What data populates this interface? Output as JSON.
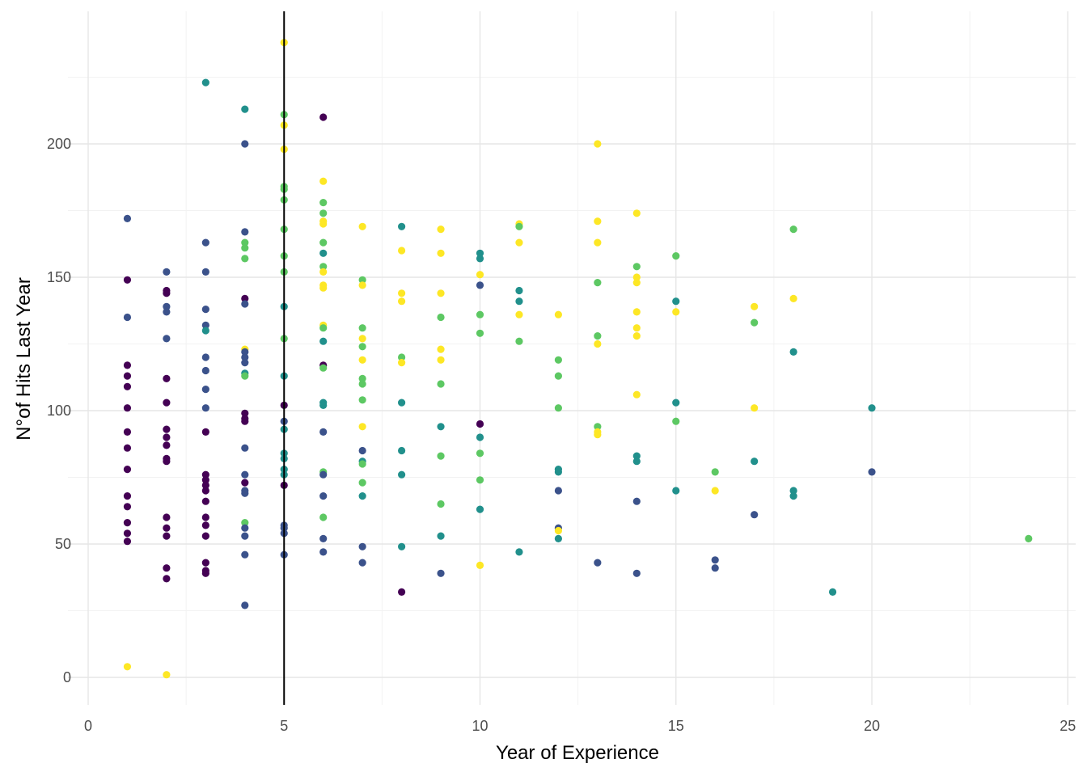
{
  "chart_data": {
    "type": "scatter",
    "title": "",
    "xlabel": "Year of Experience",
    "ylabel": "N°of Hits Last Year",
    "xlim": [
      -0.3,
      25.2
    ],
    "ylim": [
      -10,
      250
    ],
    "x_ticks": [
      0,
      5,
      10,
      15,
      20,
      25
    ],
    "y_ticks": [
      0,
      50,
      100,
      150,
      200
    ],
    "grid": true,
    "legend": "none",
    "reference_line": {
      "orientation": "vertical",
      "x": 5,
      "color": "#000000"
    },
    "color_scale": [
      "#440154",
      "#3b528b",
      "#21908c",
      "#5dc863",
      "#fde725"
    ],
    "points": [
      {
        "x": 1,
        "y": 172,
        "c": 1
      },
      {
        "x": 1,
        "y": 149,
        "c": 0
      },
      {
        "x": 1,
        "y": 135,
        "c": 1
      },
      {
        "x": 1,
        "y": 117,
        "c": 0
      },
      {
        "x": 1,
        "y": 113,
        "c": 0
      },
      {
        "x": 1,
        "y": 109,
        "c": 0
      },
      {
        "x": 1,
        "y": 101,
        "c": 0
      },
      {
        "x": 1,
        "y": 92,
        "c": 0
      },
      {
        "x": 1,
        "y": 86,
        "c": 0
      },
      {
        "x": 1,
        "y": 78,
        "c": 0
      },
      {
        "x": 1,
        "y": 68,
        "c": 0
      },
      {
        "x": 1,
        "y": 64,
        "c": 0
      },
      {
        "x": 1,
        "y": 58,
        "c": 0
      },
      {
        "x": 1,
        "y": 54,
        "c": 0
      },
      {
        "x": 1,
        "y": 51,
        "c": 0
      },
      {
        "x": 1,
        "y": 4,
        "c": 4
      },
      {
        "x": 2,
        "y": 152,
        "c": 1
      },
      {
        "x": 2,
        "y": 145,
        "c": 0
      },
      {
        "x": 2,
        "y": 144,
        "c": 0
      },
      {
        "x": 2,
        "y": 139,
        "c": 1
      },
      {
        "x": 2,
        "y": 137,
        "c": 1
      },
      {
        "x": 2,
        "y": 127,
        "c": 1
      },
      {
        "x": 2,
        "y": 112,
        "c": 0
      },
      {
        "x": 2,
        "y": 103,
        "c": 0
      },
      {
        "x": 2,
        "y": 93,
        "c": 0
      },
      {
        "x": 2,
        "y": 90,
        "c": 0
      },
      {
        "x": 2,
        "y": 87,
        "c": 0
      },
      {
        "x": 2,
        "y": 82,
        "c": 0
      },
      {
        "x": 2,
        "y": 81,
        "c": 0
      },
      {
        "x": 2,
        "y": 60,
        "c": 0
      },
      {
        "x": 2,
        "y": 56,
        "c": 0
      },
      {
        "x": 2,
        "y": 53,
        "c": 0
      },
      {
        "x": 2,
        "y": 41,
        "c": 0
      },
      {
        "x": 2,
        "y": 37,
        "c": 0
      },
      {
        "x": 2,
        "y": 1,
        "c": 4
      },
      {
        "x": 3,
        "y": 223,
        "c": 2
      },
      {
        "x": 3,
        "y": 163,
        "c": 1
      },
      {
        "x": 3,
        "y": 152,
        "c": 1
      },
      {
        "x": 3,
        "y": 138,
        "c": 1
      },
      {
        "x": 3,
        "y": 132,
        "c": 1
      },
      {
        "x": 3,
        "y": 130,
        "c": 2
      },
      {
        "x": 3,
        "y": 120,
        "c": 1
      },
      {
        "x": 3,
        "y": 115,
        "c": 1
      },
      {
        "x": 3,
        "y": 108,
        "c": 1
      },
      {
        "x": 3,
        "y": 101,
        "c": 1
      },
      {
        "x": 3,
        "y": 92,
        "c": 0
      },
      {
        "x": 3,
        "y": 76,
        "c": 0
      },
      {
        "x": 3,
        "y": 74,
        "c": 0
      },
      {
        "x": 3,
        "y": 72,
        "c": 0
      },
      {
        "x": 3,
        "y": 70,
        "c": 0
      },
      {
        "x": 3,
        "y": 66,
        "c": 0
      },
      {
        "x": 3,
        "y": 60,
        "c": 0
      },
      {
        "x": 3,
        "y": 57,
        "c": 0
      },
      {
        "x": 3,
        "y": 53,
        "c": 0
      },
      {
        "x": 3,
        "y": 43,
        "c": 0
      },
      {
        "x": 3,
        "y": 40,
        "c": 0
      },
      {
        "x": 3,
        "y": 39,
        "c": 0
      },
      {
        "x": 4,
        "y": 213,
        "c": 2
      },
      {
        "x": 4,
        "y": 200,
        "c": 1
      },
      {
        "x": 4,
        "y": 167,
        "c": 1
      },
      {
        "x": 4,
        "y": 163,
        "c": 3
      },
      {
        "x": 4,
        "y": 161,
        "c": 3
      },
      {
        "x": 4,
        "y": 157,
        "c": 3
      },
      {
        "x": 4,
        "y": 142,
        "c": 0
      },
      {
        "x": 4,
        "y": 140,
        "c": 1
      },
      {
        "x": 4,
        "y": 123,
        "c": 4
      },
      {
        "x": 4,
        "y": 122,
        "c": 1
      },
      {
        "x": 4,
        "y": 120,
        "c": 1
      },
      {
        "x": 4,
        "y": 118,
        "c": 1
      },
      {
        "x": 4,
        "y": 114,
        "c": 2
      },
      {
        "x": 4,
        "y": 113,
        "c": 3
      },
      {
        "x": 4,
        "y": 99,
        "c": 0
      },
      {
        "x": 4,
        "y": 97,
        "c": 0
      },
      {
        "x": 4,
        "y": 96,
        "c": 0
      },
      {
        "x": 4,
        "y": 86,
        "c": 1
      },
      {
        "x": 4,
        "y": 76,
        "c": 1
      },
      {
        "x": 4,
        "y": 73,
        "c": 0
      },
      {
        "x": 4,
        "y": 70,
        "c": 1
      },
      {
        "x": 4,
        "y": 69,
        "c": 1
      },
      {
        "x": 4,
        "y": 58,
        "c": 3
      },
      {
        "x": 4,
        "y": 56,
        "c": 1
      },
      {
        "x": 4,
        "y": 53,
        "c": 1
      },
      {
        "x": 4,
        "y": 46,
        "c": 1
      },
      {
        "x": 4,
        "y": 27,
        "c": 1
      },
      {
        "x": 5,
        "y": 238,
        "c": 4
      },
      {
        "x": 5,
        "y": 211,
        "c": 3
      },
      {
        "x": 5,
        "y": 207,
        "c": 4
      },
      {
        "x": 5,
        "y": 198,
        "c": 4
      },
      {
        "x": 5,
        "y": 184,
        "c": 3
      },
      {
        "x": 5,
        "y": 183,
        "c": 3
      },
      {
        "x": 5,
        "y": 179,
        "c": 3
      },
      {
        "x": 5,
        "y": 168,
        "c": 3
      },
      {
        "x": 5,
        "y": 158,
        "c": 3
      },
      {
        "x": 5,
        "y": 152,
        "c": 3
      },
      {
        "x": 5,
        "y": 139,
        "c": 2
      },
      {
        "x": 5,
        "y": 127,
        "c": 3
      },
      {
        "x": 5,
        "y": 113,
        "c": 2
      },
      {
        "x": 5,
        "y": 102,
        "c": 0
      },
      {
        "x": 5,
        "y": 96,
        "c": 1
      },
      {
        "x": 5,
        "y": 93,
        "c": 2
      },
      {
        "x": 5,
        "y": 84,
        "c": 2
      },
      {
        "x": 5,
        "y": 82,
        "c": 2
      },
      {
        "x": 5,
        "y": 78,
        "c": 2
      },
      {
        "x": 5,
        "y": 76,
        "c": 2
      },
      {
        "x": 5,
        "y": 72,
        "c": 0
      },
      {
        "x": 5,
        "y": 57,
        "c": 1
      },
      {
        "x": 5,
        "y": 56,
        "c": 1
      },
      {
        "x": 5,
        "y": 54,
        "c": 1
      },
      {
        "x": 5,
        "y": 46,
        "c": 1
      },
      {
        "x": 6,
        "y": 210,
        "c": 0
      },
      {
        "x": 6,
        "y": 186,
        "c": 4
      },
      {
        "x": 6,
        "y": 178,
        "c": 3
      },
      {
        "x": 6,
        "y": 174,
        "c": 3
      },
      {
        "x": 6,
        "y": 171,
        "c": 4
      },
      {
        "x": 6,
        "y": 170,
        "c": 4
      },
      {
        "x": 6,
        "y": 163,
        "c": 3
      },
      {
        "x": 6,
        "y": 159,
        "c": 2
      },
      {
        "x": 6,
        "y": 154,
        "c": 3
      },
      {
        "x": 6,
        "y": 152,
        "c": 4
      },
      {
        "x": 6,
        "y": 147,
        "c": 4
      },
      {
        "x": 6,
        "y": 146,
        "c": 4
      },
      {
        "x": 6,
        "y": 132,
        "c": 4
      },
      {
        "x": 6,
        "y": 131,
        "c": 3
      },
      {
        "x": 6,
        "y": 126,
        "c": 2
      },
      {
        "x": 6,
        "y": 117,
        "c": 0
      },
      {
        "x": 6,
        "y": 116,
        "c": 3
      },
      {
        "x": 6,
        "y": 103,
        "c": 2
      },
      {
        "x": 6,
        "y": 102,
        "c": 2
      },
      {
        "x": 6,
        "y": 92,
        "c": 1
      },
      {
        "x": 6,
        "y": 77,
        "c": 3
      },
      {
        "x": 6,
        "y": 76,
        "c": 1
      },
      {
        "x": 6,
        "y": 68,
        "c": 1
      },
      {
        "x": 6,
        "y": 60,
        "c": 3
      },
      {
        "x": 6,
        "y": 52,
        "c": 1
      },
      {
        "x": 6,
        "y": 47,
        "c": 1
      },
      {
        "x": 7,
        "y": 169,
        "c": 4
      },
      {
        "x": 7,
        "y": 149,
        "c": 3
      },
      {
        "x": 7,
        "y": 147,
        "c": 4
      },
      {
        "x": 7,
        "y": 131,
        "c": 3
      },
      {
        "x": 7,
        "y": 127,
        "c": 4
      },
      {
        "x": 7,
        "y": 124,
        "c": 3
      },
      {
        "x": 7,
        "y": 119,
        "c": 4
      },
      {
        "x": 7,
        "y": 112,
        "c": 3
      },
      {
        "x": 7,
        "y": 110,
        "c": 3
      },
      {
        "x": 7,
        "y": 104,
        "c": 3
      },
      {
        "x": 7,
        "y": 94,
        "c": 4
      },
      {
        "x": 7,
        "y": 85,
        "c": 1
      },
      {
        "x": 7,
        "y": 81,
        "c": 2
      },
      {
        "x": 7,
        "y": 80,
        "c": 3
      },
      {
        "x": 7,
        "y": 73,
        "c": 3
      },
      {
        "x": 7,
        "y": 68,
        "c": 2
      },
      {
        "x": 7,
        "y": 49,
        "c": 1
      },
      {
        "x": 7,
        "y": 43,
        "c": 1
      },
      {
        "x": 8,
        "y": 169,
        "c": 2
      },
      {
        "x": 8,
        "y": 160,
        "c": 4
      },
      {
        "x": 8,
        "y": 144,
        "c": 4
      },
      {
        "x": 8,
        "y": 141,
        "c": 4
      },
      {
        "x": 8,
        "y": 120,
        "c": 3
      },
      {
        "x": 8,
        "y": 118,
        "c": 4
      },
      {
        "x": 8,
        "y": 103,
        "c": 2
      },
      {
        "x": 8,
        "y": 85,
        "c": 2
      },
      {
        "x": 8,
        "y": 76,
        "c": 2
      },
      {
        "x": 8,
        "y": 49,
        "c": 2
      },
      {
        "x": 8,
        "y": 32,
        "c": 0
      },
      {
        "x": 9,
        "y": 168,
        "c": 4
      },
      {
        "x": 9,
        "y": 159,
        "c": 4
      },
      {
        "x": 9,
        "y": 144,
        "c": 4
      },
      {
        "x": 9,
        "y": 135,
        "c": 3
      },
      {
        "x": 9,
        "y": 123,
        "c": 4
      },
      {
        "x": 9,
        "y": 119,
        "c": 4
      },
      {
        "x": 9,
        "y": 110,
        "c": 3
      },
      {
        "x": 9,
        "y": 94,
        "c": 2
      },
      {
        "x": 9,
        "y": 83,
        "c": 3
      },
      {
        "x": 9,
        "y": 65,
        "c": 3
      },
      {
        "x": 9,
        "y": 53,
        "c": 2
      },
      {
        "x": 9,
        "y": 39,
        "c": 1
      },
      {
        "x": 10,
        "y": 159,
        "c": 2
      },
      {
        "x": 10,
        "y": 157,
        "c": 2
      },
      {
        "x": 10,
        "y": 151,
        "c": 4
      },
      {
        "x": 10,
        "y": 147,
        "c": 1
      },
      {
        "x": 10,
        "y": 136,
        "c": 3
      },
      {
        "x": 10,
        "y": 129,
        "c": 3
      },
      {
        "x": 10,
        "y": 95,
        "c": 0
      },
      {
        "x": 10,
        "y": 90,
        "c": 2
      },
      {
        "x": 10,
        "y": 84,
        "c": 3
      },
      {
        "x": 10,
        "y": 74,
        "c": 3
      },
      {
        "x": 10,
        "y": 63,
        "c": 2
      },
      {
        "x": 10,
        "y": 42,
        "c": 4
      },
      {
        "x": 11,
        "y": 170,
        "c": 4
      },
      {
        "x": 11,
        "y": 169,
        "c": 3
      },
      {
        "x": 11,
        "y": 163,
        "c": 4
      },
      {
        "x": 11,
        "y": 145,
        "c": 2
      },
      {
        "x": 11,
        "y": 141,
        "c": 2
      },
      {
        "x": 11,
        "y": 136,
        "c": 4
      },
      {
        "x": 11,
        "y": 126,
        "c": 3
      },
      {
        "x": 11,
        "y": 47,
        "c": 2
      },
      {
        "x": 12,
        "y": 136,
        "c": 4
      },
      {
        "x": 12,
        "y": 119,
        "c": 3
      },
      {
        "x": 12,
        "y": 113,
        "c": 3
      },
      {
        "x": 12,
        "y": 101,
        "c": 3
      },
      {
        "x": 12,
        "y": 78,
        "c": 2
      },
      {
        "x": 12,
        "y": 77,
        "c": 2
      },
      {
        "x": 12,
        "y": 70,
        "c": 1
      },
      {
        "x": 12,
        "y": 56,
        "c": 1
      },
      {
        "x": 12,
        "y": 55,
        "c": 4
      },
      {
        "x": 12,
        "y": 52,
        "c": 2
      },
      {
        "x": 13,
        "y": 200,
        "c": 4
      },
      {
        "x": 13,
        "y": 171,
        "c": 4
      },
      {
        "x": 13,
        "y": 163,
        "c": 4
      },
      {
        "x": 13,
        "y": 148,
        "c": 3
      },
      {
        "x": 13,
        "y": 128,
        "c": 3
      },
      {
        "x": 13,
        "y": 125,
        "c": 4
      },
      {
        "x": 13,
        "y": 94,
        "c": 3
      },
      {
        "x": 13,
        "y": 92,
        "c": 4
      },
      {
        "x": 13,
        "y": 91,
        "c": 4
      },
      {
        "x": 13,
        "y": 43,
        "c": 1
      },
      {
        "x": 14,
        "y": 174,
        "c": 4
      },
      {
        "x": 14,
        "y": 154,
        "c": 3
      },
      {
        "x": 14,
        "y": 150,
        "c": 4
      },
      {
        "x": 14,
        "y": 148,
        "c": 4
      },
      {
        "x": 14,
        "y": 137,
        "c": 4
      },
      {
        "x": 14,
        "y": 131,
        "c": 4
      },
      {
        "x": 14,
        "y": 128,
        "c": 4
      },
      {
        "x": 14,
        "y": 106,
        "c": 4
      },
      {
        "x": 14,
        "y": 83,
        "c": 2
      },
      {
        "x": 14,
        "y": 81,
        "c": 2
      },
      {
        "x": 14,
        "y": 66,
        "c": 1
      },
      {
        "x": 14,
        "y": 39,
        "c": 1
      },
      {
        "x": 15,
        "y": 158,
        "c": 3
      },
      {
        "x": 15,
        "y": 141,
        "c": 2
      },
      {
        "x": 15,
        "y": 137,
        "c": 4
      },
      {
        "x": 15,
        "y": 103,
        "c": 2
      },
      {
        "x": 15,
        "y": 96,
        "c": 3
      },
      {
        "x": 15,
        "y": 70,
        "c": 2
      },
      {
        "x": 16,
        "y": 77,
        "c": 3
      },
      {
        "x": 16,
        "y": 70,
        "c": 4
      },
      {
        "x": 16,
        "y": 44,
        "c": 1
      },
      {
        "x": 16,
        "y": 41,
        "c": 1
      },
      {
        "x": 17,
        "y": 139,
        "c": 4
      },
      {
        "x": 17,
        "y": 133,
        "c": 3
      },
      {
        "x": 17,
        "y": 101,
        "c": 4
      },
      {
        "x": 17,
        "y": 81,
        "c": 2
      },
      {
        "x": 17,
        "y": 61,
        "c": 1
      },
      {
        "x": 18,
        "y": 168,
        "c": 3
      },
      {
        "x": 18,
        "y": 142,
        "c": 4
      },
      {
        "x": 18,
        "y": 122,
        "c": 2
      },
      {
        "x": 18,
        "y": 70,
        "c": 2
      },
      {
        "x": 18,
        "y": 68,
        "c": 2
      },
      {
        "x": 19,
        "y": 32,
        "c": 2
      },
      {
        "x": 20,
        "y": 101,
        "c": 2
      },
      {
        "x": 20,
        "y": 77,
        "c": 1
      },
      {
        "x": 24,
        "y": 52,
        "c": 3
      }
    ]
  }
}
